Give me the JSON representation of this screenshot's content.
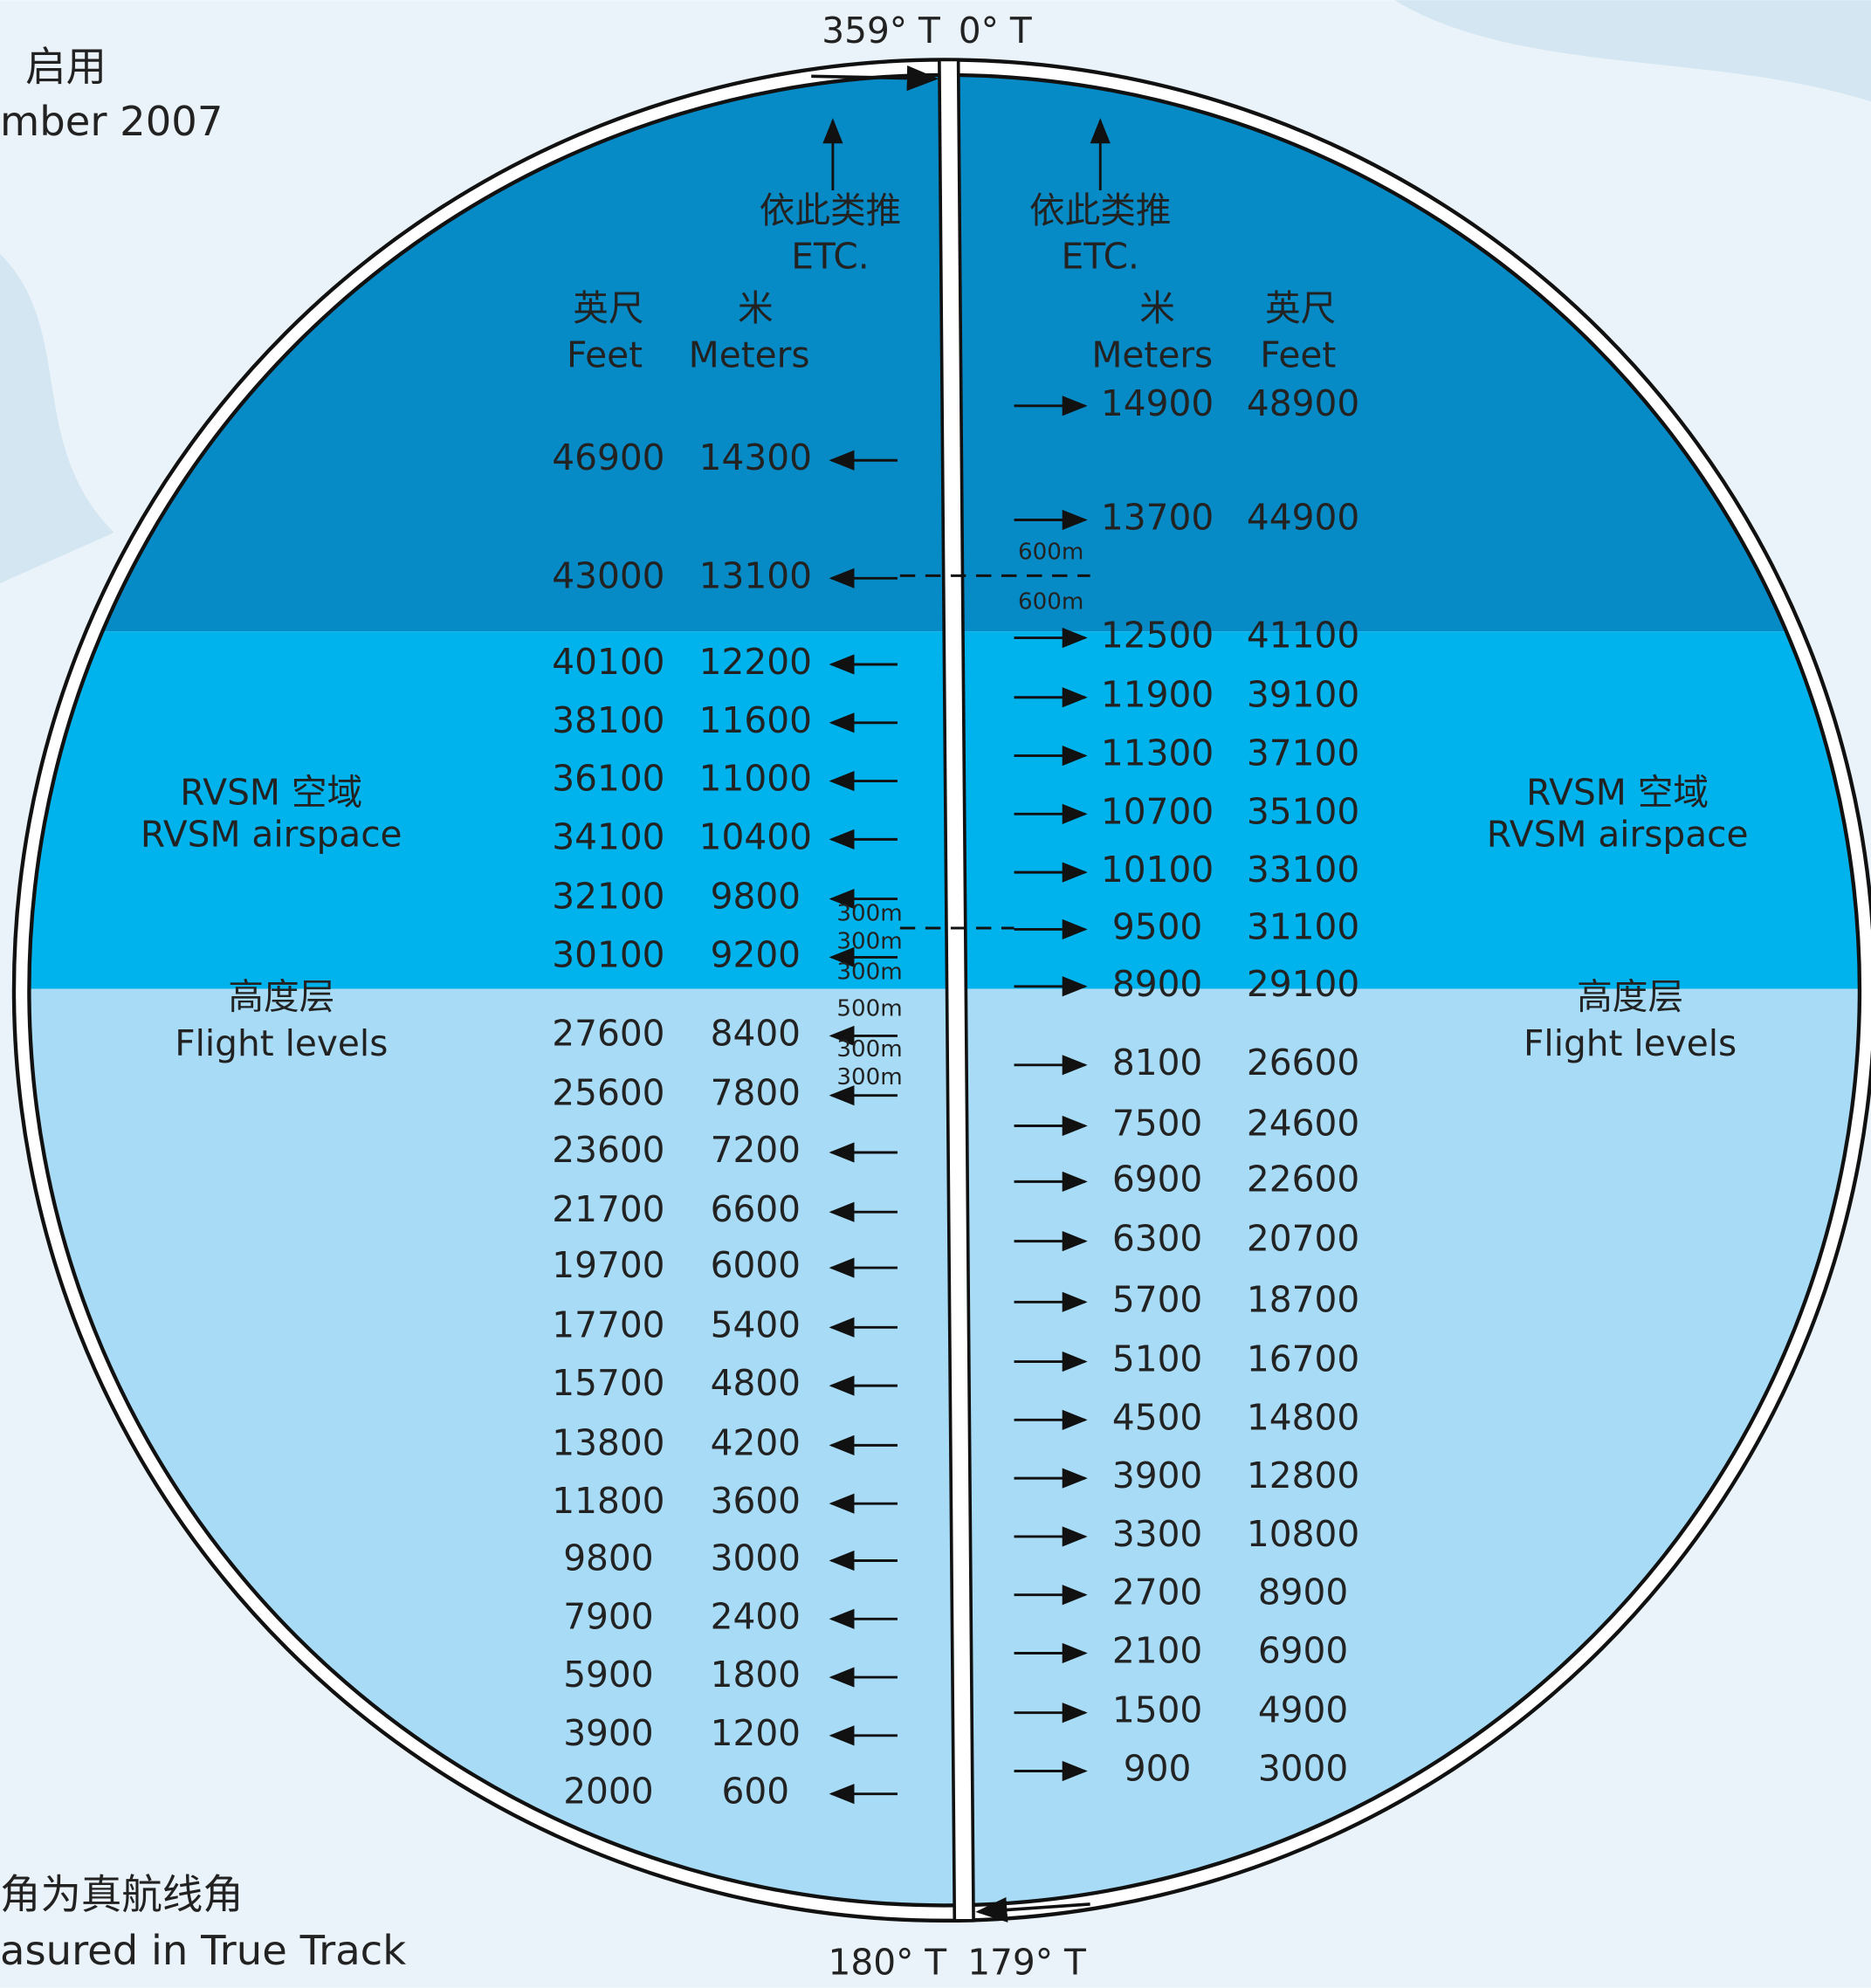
{
  "header": {
    "line1": "启用",
    "line2": "mber 2007"
  },
  "footer": {
    "line1": "角为真航线角",
    "line2": "asured in True Track"
  },
  "compass": {
    "north_left": "359° T",
    "north_right": "0° T",
    "south_left": "180° T",
    "south_right": "179° T"
  },
  "left": {
    "etc_cn": "依此类推",
    "etc_en": "ETC.",
    "feet_cn": "英尺",
    "feet_en": "Feet",
    "meters_cn": "米",
    "meters_en": "Meters",
    "levels": [
      {
        "feet": 46900,
        "meters": 14300
      },
      {
        "feet": 43000,
        "meters": 13100
      },
      {
        "feet": 40100,
        "meters": 12200
      },
      {
        "feet": 38100,
        "meters": 11600
      },
      {
        "feet": 36100,
        "meters": 11000
      },
      {
        "feet": 34100,
        "meters": 10400
      },
      {
        "feet": 32100,
        "meters": 9800
      },
      {
        "feet": 30100,
        "meters": 9200
      },
      {
        "feet": 27600,
        "meters": 8400
      },
      {
        "feet": 25600,
        "meters": 7800
      },
      {
        "feet": 23600,
        "meters": 7200
      },
      {
        "feet": 21700,
        "meters": 6600
      },
      {
        "feet": 19700,
        "meters": 6000
      },
      {
        "feet": 17700,
        "meters": 5400
      },
      {
        "feet": 15700,
        "meters": 4800
      },
      {
        "feet": 13800,
        "meters": 4200
      },
      {
        "feet": 11800,
        "meters": 3600
      },
      {
        "feet": 9800,
        "meters": 3000
      },
      {
        "feet": 7900,
        "meters": 2400
      },
      {
        "feet": 5900,
        "meters": 1800
      },
      {
        "feet": 3900,
        "meters": 1200
      },
      {
        "feet": 2000,
        "meters": 600
      }
    ],
    "separations": [
      "300m",
      "300m",
      "300m",
      "500m",
      "300m",
      "300m"
    ]
  },
  "right": {
    "etc_cn": "依此类推",
    "etc_en": "ETC.",
    "meters_cn": "米",
    "meters_en": "Meters",
    "feet_cn": "英尺",
    "feet_en": "Feet",
    "levels": [
      {
        "meters": 14900,
        "feet": 48900
      },
      {
        "meters": 13700,
        "feet": 44900
      },
      {
        "meters": 12500,
        "feet": 41100
      },
      {
        "meters": 11900,
        "feet": 39100
      },
      {
        "meters": 11300,
        "feet": 37100
      },
      {
        "meters": 10700,
        "feet": 35100
      },
      {
        "meters": 10100,
        "feet": 33100
      },
      {
        "meters": 9500,
        "feet": 31100
      },
      {
        "meters": 8900,
        "feet": 29100
      },
      {
        "meters": 8100,
        "feet": 26600
      },
      {
        "meters": 7500,
        "feet": 24600
      },
      {
        "meters": 6900,
        "feet": 22600
      },
      {
        "meters": 6300,
        "feet": 20700
      },
      {
        "meters": 5700,
        "feet": 18700
      },
      {
        "meters": 5100,
        "feet": 16700
      },
      {
        "meters": 4500,
        "feet": 14800
      },
      {
        "meters": 3900,
        "feet": 12800
      },
      {
        "meters": 3300,
        "feet": 10800
      },
      {
        "meters": 2700,
        "feet": 8900
      },
      {
        "meters": 2100,
        "feet": 6900
      },
      {
        "meters": 1500,
        "feet": 4900
      },
      {
        "meters": 900,
        "feet": 3000
      }
    ],
    "separations": [
      "600m",
      "600m"
    ]
  },
  "zones": {
    "rvsm_left_cn": "RVSM 空域",
    "rvsm_left_en": "RVSM airspace",
    "fl_left_cn": "高度层",
    "fl_left_en": "Flight levels",
    "rvsm_right_cn": "RVSM 空域",
    "rvsm_right_en": "RVSM airspace",
    "fl_right_cn": "高度层",
    "fl_right_en": "Flight levels"
  }
}
